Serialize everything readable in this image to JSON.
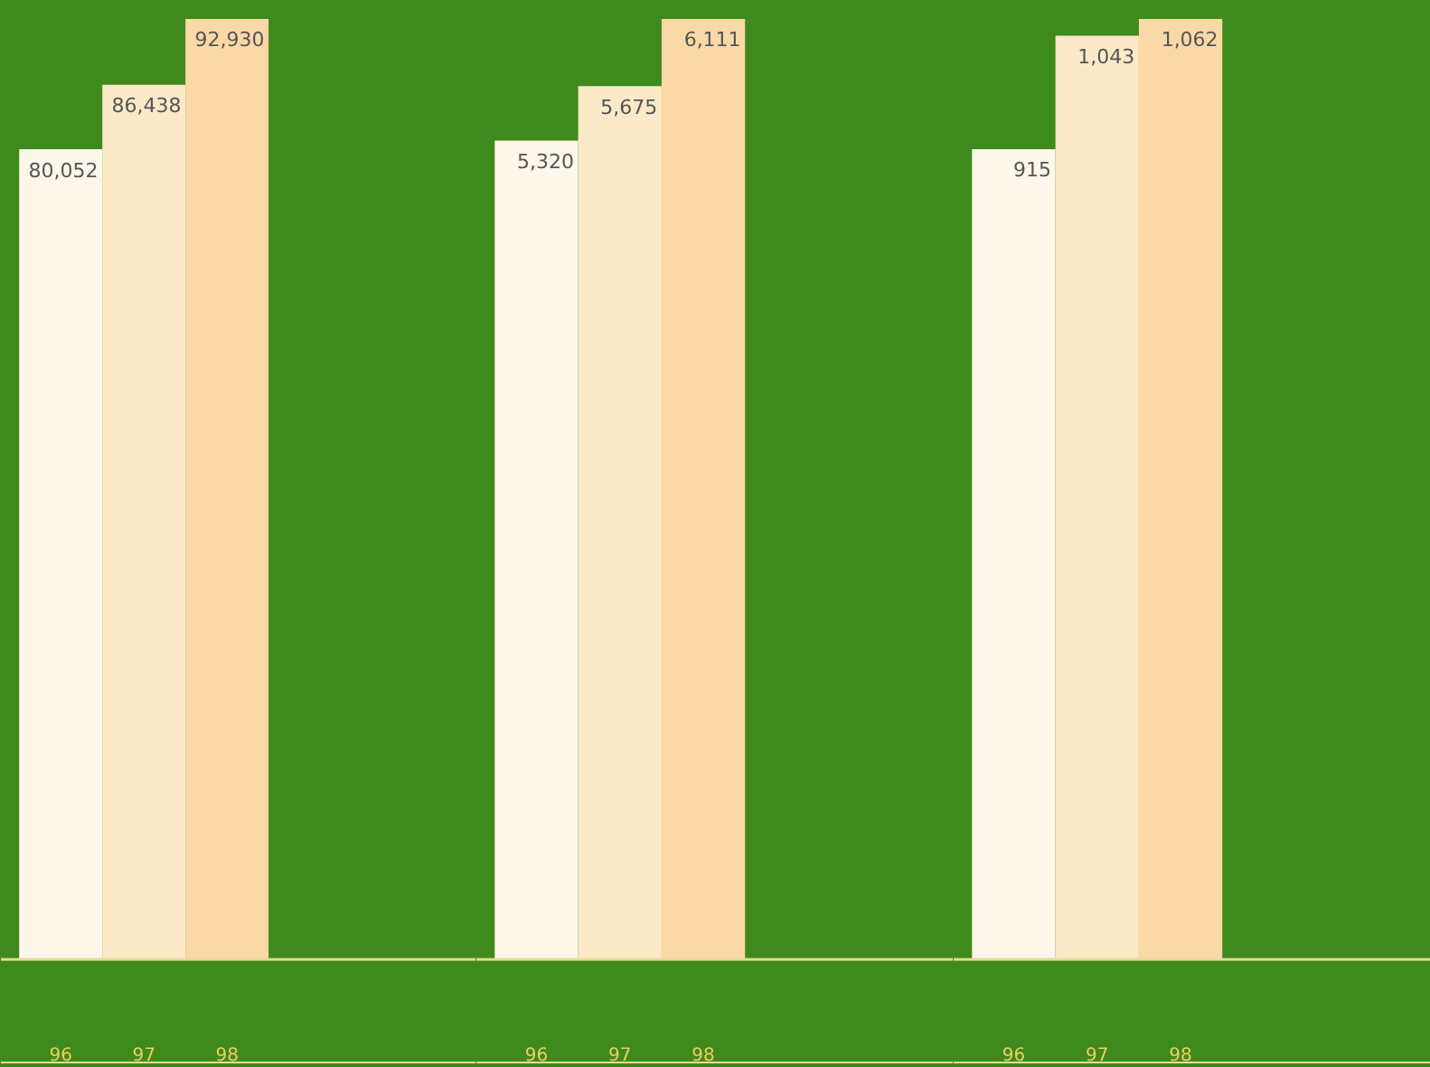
{
  "chart_data": [
    {
      "type": "bar",
      "categories": [
        "96",
        "97",
        "98"
      ],
      "values": [
        80052,
        86438,
        92930
      ],
      "colors": [
        "#fdf6ea",
        "#fce9c8",
        "#fad9a6"
      ],
      "value_labels": [
        "80,052",
        "86,438",
        "92,930"
      ]
    },
    {
      "type": "bar",
      "categories": [
        "96",
        "97",
        "98"
      ],
      "values": [
        5320,
        5675,
        6111
      ],
      "colors": [
        "#fdf6ea",
        "#fce9c8",
        "#fad9a6"
      ],
      "value_labels": [
        "5,320",
        "5,675",
        "6,111"
      ]
    },
    {
      "type": "bar",
      "categories": [
        "96",
        "97",
        "98"
      ],
      "values": [
        915,
        1043,
        1062
      ],
      "colors": [
        "#fdf6ea",
        "#fce9c8",
        "#fad9a6"
      ],
      "value_labels": [
        "915",
        "1,043",
        "1,062"
      ]
    }
  ]
}
